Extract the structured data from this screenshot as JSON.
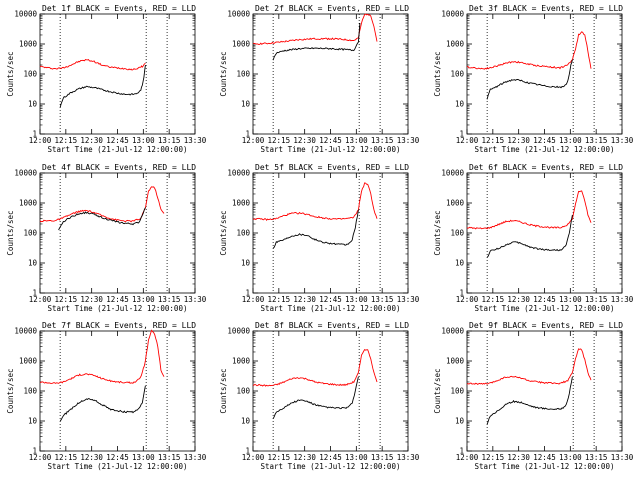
{
  "chart_data": [
    {
      "type": "line",
      "title": "Det 1f BLACK = Events, RED = LLD",
      "xlabel": "Start Time (21-Jul-12 12:00:00)",
      "ylabel": "Counts/sec",
      "xlim": [
        0,
        100
      ],
      "ylim": [
        1,
        10000
      ],
      "y_scale": "log",
      "xticks": [
        "12:00",
        "12:15",
        "12:30",
        "12:45",
        "13:00",
        "13:15",
        "13:30"
      ],
      "yticks": [
        "1",
        "10",
        "100",
        "1000",
        "10000"
      ],
      "markers_x": [
        13,
        68.5,
        82
      ],
      "series": [
        {
          "color": "#ff0000",
          "x": [
            0,
            5,
            10,
            15,
            20,
            25,
            30,
            35,
            40,
            45,
            50,
            55,
            60,
            62,
            64,
            65,
            66,
            67,
            68
          ],
          "y": [
            180,
            160,
            150,
            160,
            200,
            260,
            300,
            260,
            200,
            170,
            160,
            150,
            140,
            150,
            160,
            170,
            180,
            200,
            230
          ]
        },
        {
          "color": "#000000",
          "x": [
            13,
            15,
            20,
            25,
            30,
            35,
            40,
            45,
            50,
            55,
            60,
            62,
            64,
            65,
            66,
            67,
            68
          ],
          "y": [
            8,
            16,
            24,
            32,
            38,
            35,
            30,
            26,
            23,
            21,
            21,
            22,
            25,
            30,
            40,
            80,
            200
          ]
        }
      ]
    },
    {
      "type": "line",
      "title": "Det 2f BLACK = Events, RED = LLD",
      "xlabel": "Start Time (21-Jul-12 12:00:00)",
      "ylabel": "Counts/sec",
      "xlim": [
        0,
        100
      ],
      "ylim": [
        1,
        10000
      ],
      "y_scale": "log",
      "xticks": [
        "12:00",
        "12:15",
        "12:30",
        "12:45",
        "13:00",
        "13:15",
        "13:30"
      ],
      "yticks": [
        "1",
        "10",
        "100",
        "1000",
        "10000"
      ],
      "markers_x": [
        13,
        68.5,
        82
      ],
      "series": [
        {
          "color": "#ff0000",
          "x": [
            0,
            10,
            20,
            30,
            40,
            50,
            60,
            65,
            68,
            70,
            72,
            74,
            76,
            78,
            80
          ],
          "y": [
            1000,
            1050,
            1200,
            1400,
            1500,
            1500,
            1400,
            1300,
            1600,
            5000,
            9500,
            10000,
            9000,
            4000,
            1200
          ]
        },
        {
          "color": "#000000",
          "x": [
            13,
            15,
            20,
            30,
            40,
            50,
            60,
            65,
            68,
            69
          ],
          "y": [
            300,
            500,
            600,
            700,
            720,
            700,
            650,
            620,
            1200,
            5000
          ]
        }
      ]
    },
    {
      "type": "line",
      "title": "Det 3f BLACK = Events, RED = LLD",
      "xlabel": "Start Time (21-Jul-12 12:00:00)",
      "ylabel": "Counts/sec",
      "xlim": [
        0,
        100
      ],
      "ylim": [
        1,
        10000
      ],
      "y_scale": "log",
      "xticks": [
        "12:00",
        "12:15",
        "12:30",
        "12:45",
        "13:00",
        "13:15",
        "13:30"
      ],
      "yticks": [
        "1",
        "10",
        "100",
        "1000",
        "10000"
      ],
      "markers_x": [
        13,
        68.5,
        82
      ],
      "series": [
        {
          "color": "#ff0000",
          "x": [
            0,
            5,
            10,
            15,
            20,
            25,
            30,
            35,
            40,
            45,
            50,
            55,
            60,
            65,
            68,
            70,
            72,
            74,
            76,
            78,
            80
          ],
          "y": [
            170,
            160,
            150,
            160,
            190,
            230,
            260,
            240,
            210,
            190,
            180,
            170,
            160,
            200,
            300,
            700,
            2000,
            2500,
            2000,
            600,
            150
          ]
        },
        {
          "color": "#000000",
          "x": [
            13,
            15,
            20,
            25,
            30,
            35,
            40,
            45,
            50,
            55,
            60,
            62,
            64,
            65,
            66,
            67,
            68
          ],
          "y": [
            15,
            30,
            40,
            55,
            65,
            60,
            50,
            45,
            40,
            38,
            36,
            37,
            45,
            60,
            100,
            200,
            300
          ]
        }
      ]
    },
    {
      "type": "line",
      "title": "Det 4f BLACK = Events, RED = LLD",
      "xlabel": "Start Time (21-Jul-12 12:00:00)",
      "ylabel": "Counts/sec",
      "xlim": [
        0,
        100
      ],
      "ylim": [
        1,
        10000
      ],
      "y_scale": "log",
      "xticks": [
        "12:00",
        "12:15",
        "12:30",
        "12:45",
        "13:00",
        "13:15",
        "13:30"
      ],
      "yticks": [
        "1",
        "10",
        "100",
        "1000",
        "10000"
      ],
      "markers_x": [
        13,
        68.5,
        82
      ],
      "series": [
        {
          "color": "#ff0000",
          "x": [
            0,
            10,
            15,
            20,
            25,
            30,
            35,
            40,
            45,
            50,
            55,
            60,
            65,
            68,
            70,
            72,
            74,
            76,
            78,
            80
          ],
          "y": [
            250,
            260,
            320,
            420,
            520,
            560,
            480,
            380,
            310,
            270,
            250,
            250,
            300,
            700,
            2500,
            3500,
            3200,
            1500,
            600,
            450
          ]
        },
        {
          "color": "#000000",
          "x": [
            12,
            15,
            20,
            25,
            30,
            35,
            40,
            45,
            50,
            55,
            60,
            62,
            64,
            66,
            68
          ],
          "y": [
            120,
            240,
            340,
            440,
            480,
            420,
            330,
            270,
            230,
            210,
            200,
            210,
            230,
            400,
            700
          ]
        }
      ]
    },
    {
      "type": "line",
      "title": "Det 5f BLACK = Events, RED = LLD",
      "xlabel": "Start Time (21-Jul-12 12:00:00)",
      "ylabel": "Counts/sec",
      "xlim": [
        0,
        100
      ],
      "ylim": [
        1,
        10000
      ],
      "y_scale": "log",
      "xticks": [
        "12:00",
        "12:15",
        "12:30",
        "12:45",
        "13:00",
        "13:15",
        "13:30"
      ],
      "yticks": [
        "1",
        "10",
        "100",
        "1000",
        "10000"
      ],
      "markers_x": [
        13,
        68.5,
        82
      ],
      "series": [
        {
          "color": "#ff0000",
          "x": [
            0,
            10,
            15,
            20,
            25,
            30,
            35,
            40,
            45,
            50,
            55,
            60,
            65,
            68,
            70,
            72,
            74,
            76,
            78,
            80
          ],
          "y": [
            300,
            280,
            300,
            380,
            450,
            460,
            420,
            350,
            320,
            300,
            290,
            300,
            330,
            600,
            2500,
            4500,
            4200,
            2000,
            600,
            300
          ]
        },
        {
          "color": "#000000",
          "x": [
            13,
            15,
            20,
            25,
            30,
            35,
            40,
            45,
            50,
            55,
            60,
            62,
            64,
            66,
            68
          ],
          "y": [
            30,
            50,
            60,
            80,
            90,
            85,
            60,
            50,
            45,
            42,
            40,
            45,
            60,
            150,
            600
          ]
        }
      ]
    },
    {
      "type": "line",
      "title": "Det 6f BLACK = Events, RED = LLD",
      "xlabel": "Start Time (21-Jul-12 12:00:00)",
      "ylabel": "Counts/sec",
      "xlim": [
        0,
        100
      ],
      "ylim": [
        1,
        10000
      ],
      "y_scale": "log",
      "xticks": [
        "12:00",
        "12:15",
        "12:30",
        "12:45",
        "13:00",
        "13:15",
        "13:30"
      ],
      "yticks": [
        "1",
        "10",
        "100",
        "1000",
        "10000"
      ],
      "markers_x": [
        13,
        68.5,
        82
      ],
      "series": [
        {
          "color": "#ff0000",
          "x": [
            0,
            10,
            15,
            20,
            25,
            30,
            35,
            40,
            45,
            50,
            55,
            60,
            65,
            68,
            70,
            72,
            74,
            76,
            78,
            80
          ],
          "y": [
            150,
            140,
            150,
            190,
            240,
            260,
            230,
            190,
            170,
            160,
            150,
            150,
            190,
            300,
            900,
            2500,
            2400,
            1200,
            400,
            220
          ]
        },
        {
          "color": "#000000",
          "x": [
            13,
            15,
            20,
            25,
            30,
            35,
            40,
            45,
            50,
            55,
            60,
            62,
            64,
            66,
            68
          ],
          "y": [
            15,
            25,
            30,
            40,
            50,
            45,
            35,
            30,
            28,
            27,
            27,
            30,
            40,
            100,
            400
          ]
        }
      ]
    },
    {
      "type": "line",
      "title": "Det 7f BLACK = Events, RED = LLD",
      "xlabel": "Start Time (21-Jul-12 12:00:00)",
      "ylabel": "Counts/sec",
      "xlim": [
        0,
        100
      ],
      "ylim": [
        1,
        10000
      ],
      "y_scale": "log",
      "xticks": [
        "12:00",
        "12:15",
        "12:30",
        "12:45",
        "13:00",
        "13:15",
        "13:30"
      ],
      "yticks": [
        "1",
        "10",
        "100",
        "1000",
        "10000"
      ],
      "markers_x": [
        13,
        68.5,
        82
      ],
      "series": [
        {
          "color": "#ff0000",
          "x": [
            0,
            10,
            15,
            20,
            25,
            30,
            35,
            40,
            45,
            50,
            55,
            60,
            62,
            64,
            66,
            68,
            70,
            72,
            74,
            76,
            78,
            80
          ],
          "y": [
            200,
            180,
            200,
            260,
            340,
            370,
            330,
            260,
            220,
            200,
            190,
            190,
            210,
            250,
            400,
            1000,
            5000,
            10000,
            8000,
            3000,
            500,
            300
          ]
        },
        {
          "color": "#000000",
          "x": [
            13,
            15,
            20,
            25,
            30,
            35,
            40,
            45,
            50,
            55,
            60,
            62,
            64,
            66,
            68
          ],
          "y": [
            10,
            15,
            25,
            40,
            55,
            50,
            35,
            25,
            22,
            20,
            20,
            22,
            26,
            40,
            150
          ]
        }
      ]
    },
    {
      "type": "line",
      "title": "Det 8f BLACK = Events, RED = LLD",
      "xlabel": "Start Time (21-Jul-12 12:00:00)",
      "ylabel": "Counts/sec",
      "xlim": [
        0,
        100
      ],
      "ylim": [
        1,
        10000
      ],
      "y_scale": "log",
      "xticks": [
        "12:00",
        "12:15",
        "12:30",
        "12:45",
        "13:00",
        "13:15",
        "13:30"
      ],
      "yticks": [
        "1",
        "10",
        "100",
        "1000",
        "10000"
      ],
      "markers_x": [
        13,
        68.5,
        82
      ],
      "series": [
        {
          "color": "#ff0000",
          "x": [
            0,
            10,
            15,
            20,
            25,
            30,
            35,
            40,
            45,
            50,
            55,
            60,
            65,
            68,
            70,
            72,
            74,
            76,
            78,
            80
          ],
          "y": [
            160,
            150,
            160,
            200,
            260,
            280,
            250,
            200,
            180,
            170,
            160,
            160,
            200,
            400,
            1500,
            2500,
            2300,
            1200,
            400,
            200
          ]
        },
        {
          "color": "#000000",
          "x": [
            13,
            15,
            20,
            25,
            30,
            35,
            40,
            45,
            50,
            55,
            60,
            62,
            64,
            66,
            68
          ],
          "y": [
            12,
            20,
            28,
            40,
            50,
            45,
            35,
            30,
            28,
            27,
            27,
            30,
            40,
            100,
            300
          ]
        }
      ]
    },
    {
      "type": "line",
      "title": "Det 9f BLACK = Events, RED = LLD",
      "xlabel": "Start Time (21-Jul-12 12:00:00)",
      "ylabel": "Counts/sec",
      "xlim": [
        0,
        100
      ],
      "ylim": [
        1,
        10000
      ],
      "y_scale": "log",
      "xticks": [
        "12:00",
        "12:15",
        "12:30",
        "12:45",
        "13:00",
        "13:15",
        "13:30"
      ],
      "yticks": [
        "1",
        "10",
        "100",
        "1000",
        "10000"
      ],
      "markers_x": [
        13,
        68.5,
        82
      ],
      "series": [
        {
          "color": "#ff0000",
          "x": [
            0,
            10,
            15,
            20,
            25,
            30,
            35,
            40,
            45,
            50,
            55,
            60,
            65,
            68,
            70,
            72,
            74,
            76,
            78,
            80
          ],
          "y": [
            180,
            170,
            180,
            230,
            290,
            300,
            270,
            220,
            200,
            190,
            180,
            180,
            220,
            400,
            1200,
            2500,
            2400,
            1100,
            400,
            230
          ]
        },
        {
          "color": "#000000",
          "x": [
            13,
            15,
            20,
            25,
            30,
            35,
            40,
            45,
            50,
            55,
            60,
            62,
            64,
            66,
            68
          ],
          "y": [
            8,
            15,
            22,
            35,
            45,
            42,
            33,
            28,
            26,
            25,
            25,
            28,
            35,
            80,
            300
          ]
        }
      ]
    }
  ]
}
